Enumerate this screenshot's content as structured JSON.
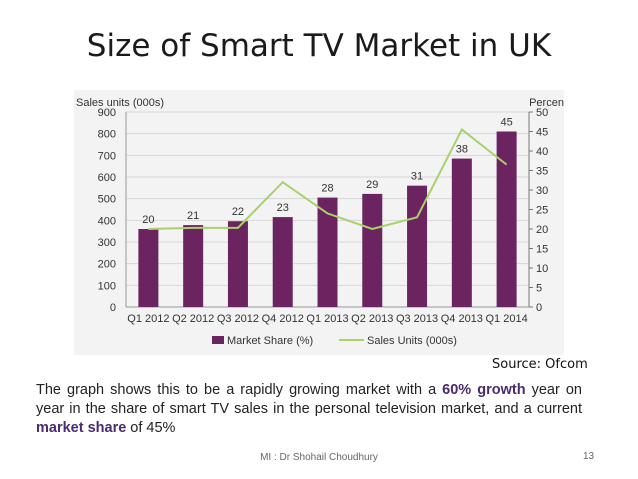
{
  "slide": {
    "title": "Size of Smart TV Market in UK",
    "source": "Source: Ofcom",
    "text_parts": [
      "The graph shows this to be a rapidly growing market with a ",
      "60% growth",
      " year on year in the share of smart TV sales in the personal television market, and a current ",
      "market share",
      " of 45%"
    ],
    "footer": "MI : Dr Shohail Choudhury",
    "page_number": "13"
  },
  "colors": {
    "bar": "#6b2460",
    "line": "#a8d26a",
    "axis_text": "#333333",
    "grid": "#d7d7d7",
    "bg": "#f3f3f3"
  },
  "chart_data": {
    "type": "bar",
    "categories": [
      "Q1 2012",
      "Q2 2012",
      "Q3 2012",
      "Q4 2012",
      "Q1 2013",
      "Q2 2013",
      "Q3 2013",
      "Q4 2013",
      "Q1 2014"
    ],
    "left_axis": {
      "label": "Sales units (000s)",
      "min": 0,
      "max": 900,
      "ticks": [
        "0",
        "100",
        "200",
        "300",
        "400",
        "500",
        "600",
        "700",
        "800",
        "900"
      ]
    },
    "right_axis": {
      "label": "Percent",
      "min": 0,
      "max": 50,
      "ticks": [
        "0",
        "5",
        "10",
        "15",
        "20",
        "25",
        "30",
        "35",
        "40",
        "45",
        "50"
      ]
    },
    "series": [
      {
        "name": "Market Share (%)",
        "kind": "bar",
        "axis": "left",
        "values": [
          360,
          378,
          396,
          415,
          505,
          522,
          560,
          685,
          810
        ],
        "data_labels": [
          "20",
          "21",
          "22",
          "23",
          "28",
          "29",
          "31",
          "38",
          "45"
        ]
      },
      {
        "name": "Sales Units (000s)",
        "kind": "line",
        "axis": "right",
        "values": [
          20,
          20.3,
          20.3,
          32,
          24,
          20,
          23,
          45.5,
          36.5
        ]
      }
    ],
    "legend": [
      "Market Share (%)",
      "Sales Units (000s)"
    ],
    "legend_position": "bottom",
    "grid": true
  }
}
